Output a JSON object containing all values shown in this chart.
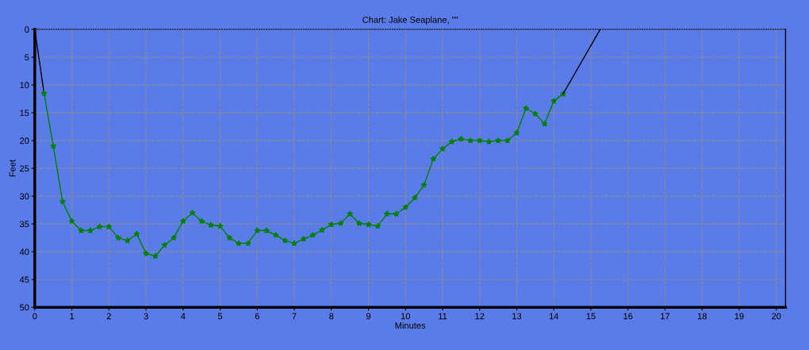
{
  "chart_data": {
    "type": "line",
    "title": "Chart: Jake Seaplane, \"\"",
    "xlabel": "Minutes",
    "ylabel": "Feet",
    "series": [
      {
        "color": "#000000",
        "marker": "none",
        "x": [
          0,
          0.25
        ],
        "values": [
          0,
          11.5
        ]
      },
      {
        "color": "#008000",
        "marker": "star",
        "x": [
          0.25,
          0.5,
          0.75,
          1.0,
          1.25,
          1.5,
          1.75,
          2.0,
          2.25,
          2.5,
          2.75,
          3.0,
          3.25,
          3.5,
          3.75,
          4.0,
          4.25,
          4.5,
          4.75,
          5.0,
          5.25,
          5.5,
          5.75,
          6.0,
          6.25,
          6.5,
          6.75,
          7.0,
          7.25,
          7.5,
          7.75,
          8.0,
          8.25,
          8.5,
          8.75,
          9.0,
          9.25,
          9.5,
          9.75,
          10.0,
          10.25,
          10.5,
          10.75,
          11.0,
          11.25,
          11.5,
          11.75,
          12.0,
          12.25,
          12.5,
          12.75,
          13.0,
          13.25,
          13.5,
          13.75,
          14.0,
          14.25
        ],
        "values": [
          11.5,
          21,
          31,
          34.5,
          36.2,
          36.2,
          35.5,
          35.5,
          37.5,
          38,
          36.8,
          40.3,
          40.8,
          38.8,
          37.5,
          34.5,
          33,
          34.5,
          35.2,
          35.4,
          37.5,
          38.5,
          38.5,
          36.2,
          36.2,
          37,
          38,
          38.5,
          37.7,
          37,
          36.1,
          35.1,
          34.9,
          33.2,
          34.9,
          35.1,
          35.4,
          33.2,
          33.2,
          32,
          30.3,
          28,
          23.3,
          21.5,
          20.2,
          19.7,
          20,
          20,
          20.2,
          20,
          20,
          18.6,
          14.2,
          15.2,
          17,
          12.9,
          11.6
        ]
      },
      {
        "color": "#000000",
        "marker": "none",
        "x": [
          14.25,
          15.25
        ],
        "values": [
          11.6,
          0
        ]
      }
    ],
    "xlim": [
      0,
      20.25
    ],
    "xticks": [
      0,
      1,
      2,
      3,
      4,
      5,
      6,
      7,
      8,
      9,
      10,
      11,
      12,
      13,
      14,
      15,
      16,
      17,
      18,
      19,
      20
    ],
    "ylim": [
      50,
      0
    ],
    "yticks": [
      0,
      5,
      10,
      15,
      20,
      25,
      30,
      35,
      40,
      45,
      50
    ],
    "grid": true,
    "line_style": "solid"
  }
}
